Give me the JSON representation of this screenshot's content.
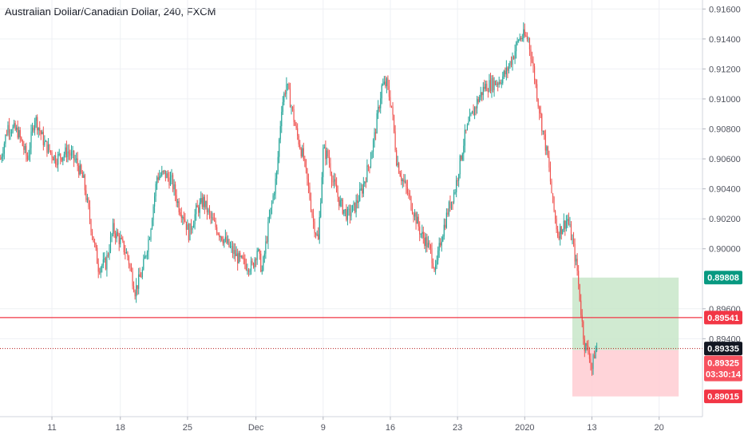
{
  "header": {
    "title": "Australian Dollar/Canadian Dollar, 240, FXCM"
  },
  "colors": {
    "up": "#26a69a",
    "down": "#ef5350",
    "profit_zone": "#c8e6c9",
    "loss_zone": "#ffcdd2",
    "grid": "#eef0f4",
    "price_badge": "#131722",
    "target_badge": "#089981",
    "stop_badge": "#f23645",
    "line": "#f23645"
  },
  "chart_data": {
    "type": "candlestick",
    "title": "Australian Dollar/Canadian Dollar, 240, FXCM",
    "y_ticks": [
      "0.91600",
      "0.91400",
      "0.91200",
      "0.91000",
      "0.90800",
      "0.90600",
      "0.90400",
      "0.90200",
      "0.90000",
      "0.89600",
      "0.89400"
    ],
    "y_tick_values": [
      0.916,
      0.914,
      0.912,
      0.91,
      0.908,
      0.906,
      0.904,
      0.902,
      0.9,
      0.896,
      0.894
    ],
    "ylim": [
      0.8888,
      0.9166
    ],
    "x_ticks": [
      "11",
      "18",
      "25",
      "Dec",
      "9",
      "16",
      "23",
      "2020",
      "13",
      "20"
    ],
    "x_tick_bars": [
      42,
      98,
      153,
      209,
      264,
      319,
      374,
      429,
      484,
      539
    ],
    "bars_total": 575,
    "price_path": [
      [
        0,
        0.906
      ],
      [
        6,
        0.9082
      ],
      [
        14,
        0.9078
      ],
      [
        22,
        0.906
      ],
      [
        28,
        0.9088
      ],
      [
        36,
        0.907
      ],
      [
        45,
        0.906
      ],
      [
        55,
        0.9065
      ],
      [
        62,
        0.9058
      ],
      [
        68,
        0.9045
      ],
      [
        74,
        0.9015
      ],
      [
        80,
        0.8988
      ],
      [
        86,
        0.899
      ],
      [
        92,
        0.9013
      ],
      [
        98,
        0.9005
      ],
      [
        104,
        0.8995
      ],
      [
        110,
        0.8972
      ],
      [
        116,
        0.8985
      ],
      [
        122,
        0.901
      ],
      [
        128,
        0.9048
      ],
      [
        134,
        0.905
      ],
      [
        140,
        0.9045
      ],
      [
        146,
        0.9028
      ],
      [
        150,
        0.9022
      ],
      [
        154,
        0.901
      ],
      [
        160,
        0.9025
      ],
      [
        166,
        0.9032
      ],
      [
        172,
        0.902
      ],
      [
        178,
        0.9012
      ],
      [
        184,
        0.9005
      ],
      [
        190,
        0.8998
      ],
      [
        196,
        0.8992
      ],
      [
        200,
        0.899
      ],
      [
        206,
        0.8988
      ],
      [
        210,
        0.9
      ],
      [
        214,
        0.8985
      ],
      [
        220,
        0.902
      ],
      [
        226,
        0.905
      ],
      [
        230,
        0.9095
      ],
      [
        234,
        0.911
      ],
      [
        238,
        0.9095
      ],
      [
        242,
        0.9078
      ],
      [
        248,
        0.906
      ],
      [
        252,
        0.904
      ],
      [
        256,
        0.9018
      ],
      [
        260,
        0.9005
      ],
      [
        264,
        0.9065
      ],
      [
        268,
        0.9062
      ],
      [
        272,
        0.9045
      ],
      [
        278,
        0.903
      ],
      [
        284,
        0.9022
      ],
      [
        290,
        0.9028
      ],
      [
        296,
        0.904
      ],
      [
        302,
        0.9058
      ],
      [
        306,
        0.9075
      ],
      [
        312,
        0.9108
      ],
      [
        316,
        0.911
      ],
      [
        320,
        0.9095
      ],
      [
        324,
        0.906
      ],
      [
        328,
        0.9048
      ],
      [
        332,
        0.904
      ],
      [
        336,
        0.903
      ],
      [
        340,
        0.902
      ],
      [
        344,
        0.901
      ],
      [
        348,
        0.9005
      ],
      [
        352,
        0.8998
      ],
      [
        356,
        0.8985
      ],
      [
        360,
        0.9005
      ],
      [
        366,
        0.9025
      ],
      [
        372,
        0.904
      ],
      [
        376,
        0.9058
      ],
      [
        380,
        0.9075
      ],
      [
        384,
        0.9085
      ],
      [
        390,
        0.9098
      ],
      [
        396,
        0.9108
      ],
      [
        402,
        0.911
      ],
      [
        408,
        0.9112
      ],
      [
        414,
        0.9118
      ],
      [
        420,
        0.913
      ],
      [
        424,
        0.914
      ],
      [
        428,
        0.9142
      ],
      [
        432,
        0.914
      ],
      [
        436,
        0.912
      ],
      [
        440,
        0.9098
      ],
      [
        444,
        0.9078
      ],
      [
        448,
        0.906
      ],
      [
        452,
        0.903
      ],
      [
        456,
        0.901
      ],
      [
        460,
        0.9015
      ],
      [
        464,
        0.902
      ],
      [
        468,
        0.9005
      ],
      [
        472,
        0.8985
      ],
      [
        476,
        0.895
      ],
      [
        478,
        0.8936
      ],
      [
        482,
        0.893
      ],
      [
        484,
        0.892
      ],
      [
        486,
        0.893
      ],
      [
        488,
        0.8934
      ]
    ],
    "candles_until_bar": 488,
    "levels": {
      "target": 0.89808,
      "entry_line": 0.89541,
      "current": 0.89335,
      "stop": 0.89015
    },
    "position_box": {
      "start_bar": 468,
      "end_bar": 555,
      "entry": 0.89325
    }
  },
  "price_scale": {
    "target_label": "0.89808",
    "entry_line_label": "0.89541",
    "current_label": "0.89335",
    "entry_label": "0.89325",
    "countdown": "03:30:14",
    "stop_label": "0.89015"
  }
}
